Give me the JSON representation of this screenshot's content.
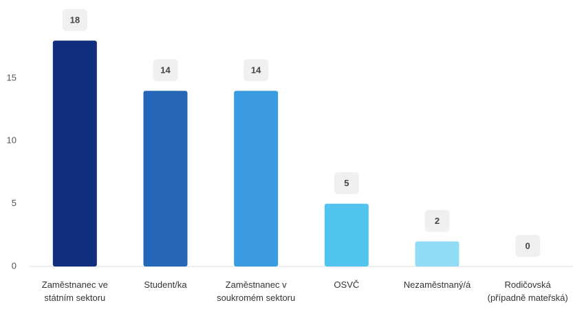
{
  "chart_data": {
    "type": "bar",
    "categories": [
      "Zaměstnanec ve státním sektoru",
      "Student/ka",
      "Zaměstnanec v soukromém sektoru",
      "OSVČ",
      "Nezaměstnaný/á",
      "Rodičovská (případně mateřská)"
    ],
    "values": [
      18,
      14,
      14,
      5,
      2,
      0
    ],
    "colors": [
      "#10307f",
      "#2566b9",
      "#3a9be0",
      "#50c3ee",
      "#90dcf5",
      "#c9eefa"
    ],
    "ylim": [
      0,
      20
    ],
    "yticks": [
      0,
      5,
      10,
      15
    ]
  }
}
